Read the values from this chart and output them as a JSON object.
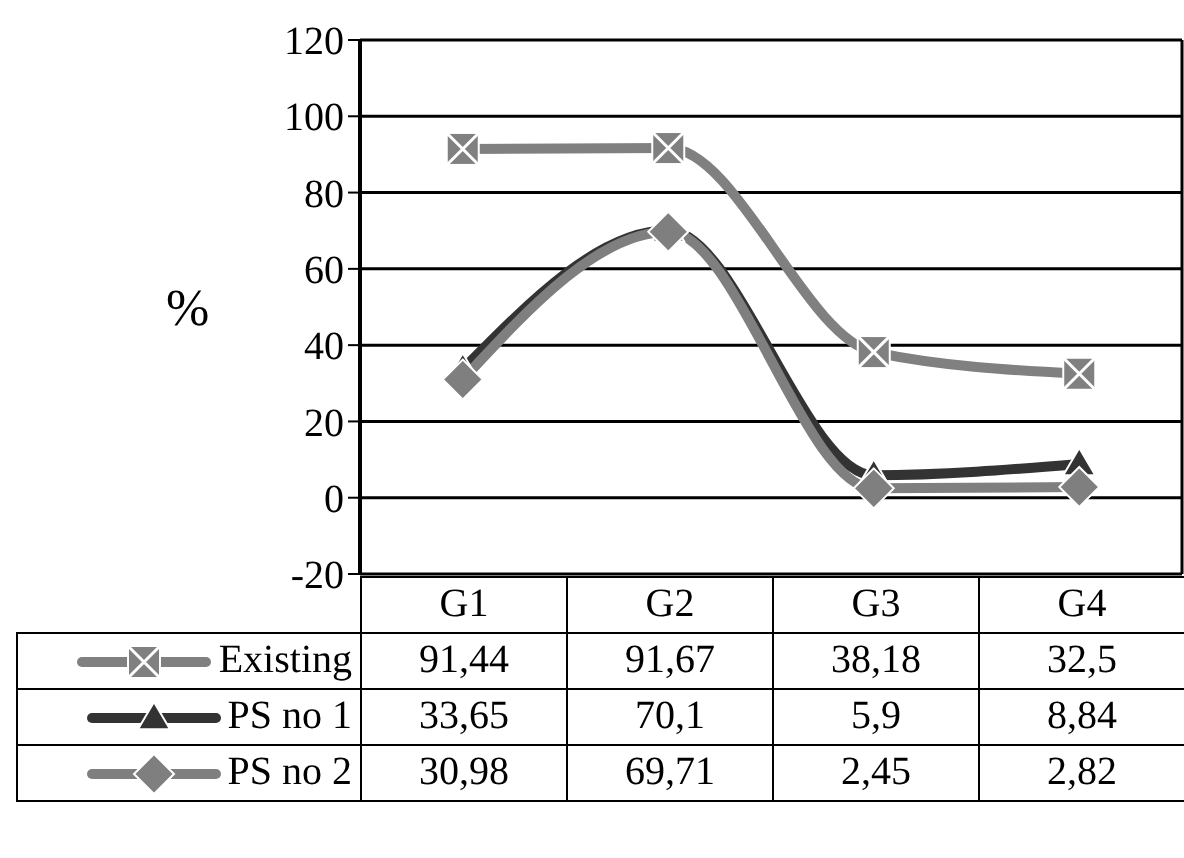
{
  "chart_data": {
    "type": "line",
    "ylabel": "%",
    "categories": [
      "G1",
      "G2",
      "G3",
      "G4"
    ],
    "series": [
      {
        "name": "Existing",
        "color": "#808080",
        "marker": "square",
        "values": [
          91.44,
          91.67,
          38.18,
          32.5
        ],
        "value_labels": [
          "91,44",
          "91,67",
          "38,18",
          "32,5"
        ]
      },
      {
        "name": "PS no 1",
        "color": "#333333",
        "marker": "triangle",
        "values": [
          33.65,
          70.1,
          5.9,
          8.84
        ],
        "value_labels": [
          "33,65",
          "70,1",
          "5,9",
          "8,84"
        ]
      },
      {
        "name": "PS no 2",
        "color": "#7f7f7f",
        "marker": "diamond",
        "values": [
          30.98,
          69.71,
          2.45,
          2.82
        ],
        "value_labels": [
          "30,98",
          "69,71",
          "2,45",
          "2,82"
        ]
      }
    ],
    "ylim": [
      -20,
      120
    ],
    "yticks": [
      -20,
      0,
      20,
      40,
      60,
      80,
      100,
      120
    ],
    "grid": true,
    "legend": "bottom"
  }
}
